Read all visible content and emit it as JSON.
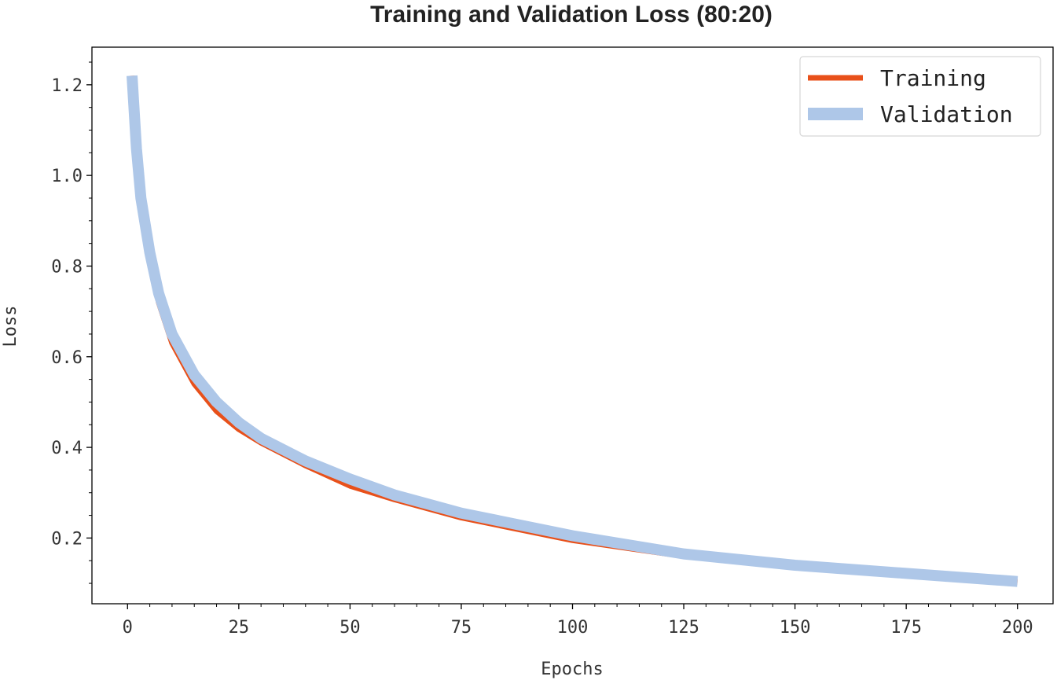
{
  "chart_data": {
    "type": "line",
    "title": "Training and Validation Loss (80:20)",
    "xlabel": "Epochs",
    "ylabel": "Loss",
    "xlim": [
      -8,
      208
    ],
    "ylim": [
      0.055,
      1.283
    ],
    "xticks": [
      0,
      25,
      50,
      75,
      100,
      125,
      150,
      175,
      200
    ],
    "yticks": [
      0.2,
      0.4,
      0.6,
      0.8,
      1.0,
      1.2
    ],
    "ytick_labels": [
      "0.2",
      "0.4",
      "0.6",
      "0.8",
      "1.0",
      "1.2"
    ],
    "grid": false,
    "legend_position": "top-right",
    "series": [
      {
        "name": "Training",
        "color": "#e8501a",
        "x": [
          1,
          2,
          3,
          5,
          7,
          10,
          15,
          20,
          25,
          30,
          40,
          50,
          60,
          75,
          100,
          125,
          150,
          175,
          200
        ],
        "values": [
          1.22,
          1.05,
          0.94,
          0.81,
          0.72,
          0.63,
          0.54,
          0.48,
          0.44,
          0.41,
          0.36,
          0.315,
          0.285,
          0.245,
          0.195,
          0.16,
          0.135,
          0.12,
          0.103
        ]
      },
      {
        "name": "Validation",
        "color": "#aec7e8",
        "x": [
          1,
          2,
          3,
          5,
          7,
          10,
          15,
          20,
          25,
          30,
          40,
          50,
          60,
          75,
          100,
          125,
          150,
          175,
          200
        ],
        "values": [
          1.22,
          1.06,
          0.95,
          0.83,
          0.74,
          0.65,
          0.56,
          0.5,
          0.455,
          0.42,
          0.37,
          0.33,
          0.295,
          0.255,
          0.205,
          0.165,
          0.14,
          0.122,
          0.104
        ]
      }
    ]
  }
}
